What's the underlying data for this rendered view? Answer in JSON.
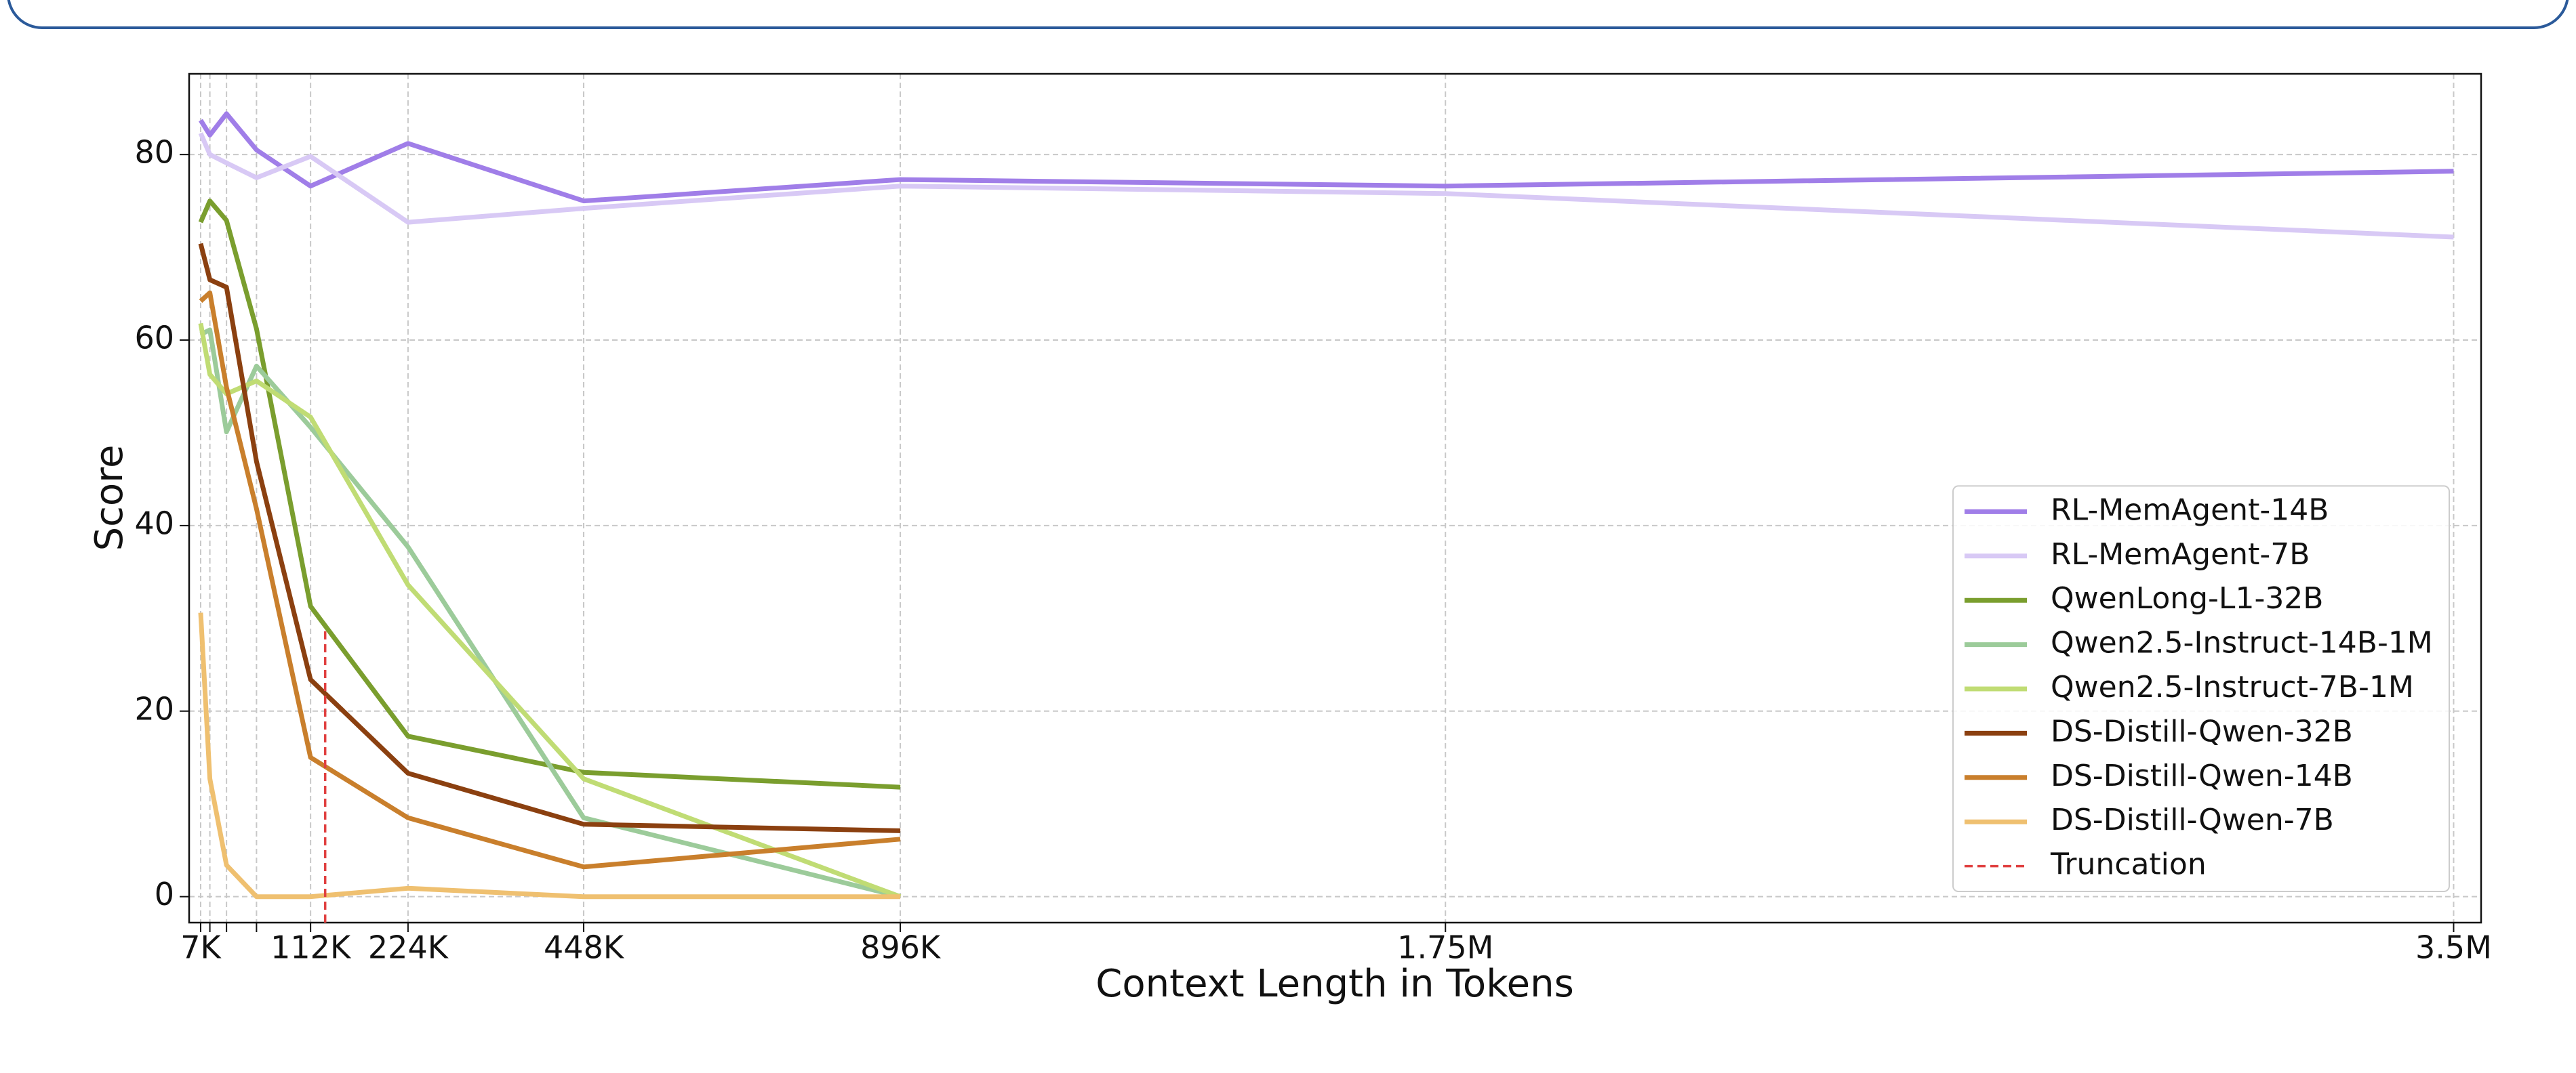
{
  "chart_data": {
    "type": "line",
    "xlabel": "Context Length in Tokens",
    "ylabel": "Score",
    "x": [
      7000,
      14000,
      28000,
      56000,
      112000,
      224000,
      448000,
      896000,
      1750000,
      3500000
    ],
    "xscale": "power",
    "xexponent": 0.85,
    "xlim": [
      0,
      3550000
    ],
    "xticks": [
      {
        "value": 7000,
        "label": "7K"
      },
      {
        "value": 112000,
        "label": "112K"
      },
      {
        "value": 224000,
        "label": "224K"
      },
      {
        "value": 448000,
        "label": "448K"
      },
      {
        "value": 896000,
        "label": "896K"
      },
      {
        "value": 1750000,
        "label": "1.75M"
      },
      {
        "value": 3500000,
        "label": "3.5M"
      }
    ],
    "xminorticks": [
      14000,
      28000,
      56000
    ],
    "ylim": [
      -2.8,
      88.7
    ],
    "yticks": [
      0,
      20,
      40,
      60,
      80
    ],
    "grid": true,
    "legend": "lower right",
    "series": [
      {
        "name": "RL-MemAgent-14B",
        "color": "#a07ee8",
        "values": [
          83.7,
          82.1,
          84.4,
          80.5,
          76.6,
          81.2,
          75.0,
          77.3,
          76.6,
          78.2
        ]
      },
      {
        "name": "RL-MemAgent-7B",
        "color": "#d8c9f5",
        "values": [
          82.3,
          80.0,
          79.1,
          77.5,
          79.8,
          72.7,
          74.2,
          76.6,
          75.8,
          71.1
        ]
      },
      {
        "name": "QwenLong-L1-32B",
        "color": "#7a9e2e",
        "values": [
          72.7,
          75.0,
          72.9,
          61.2,
          31.3,
          17.3,
          13.4,
          11.8,
          null,
          null
        ]
      },
      {
        "name": "Qwen2.5-Instruct-14B-1M",
        "color": "#9ccb9a",
        "values": [
          60.6,
          61.1,
          50.1,
          57.2,
          50.6,
          37.7,
          8.5,
          0,
          null,
          null
        ]
      },
      {
        "name": "Qwen2.5-Instruct-7B-1M",
        "color": "#c0dc74",
        "values": [
          61.8,
          56.3,
          54.2,
          55.6,
          51.7,
          33.6,
          12.7,
          0,
          null,
          null
        ]
      },
      {
        "name": "DS-Distill-Qwen-32B",
        "color": "#8b4010",
        "values": [
          70.4,
          66.5,
          65.7,
          46.9,
          23.4,
          13.3,
          7.8,
          7.1,
          null,
          null
        ]
      },
      {
        "name": "DS-Distill-Qwen-14B",
        "color": "#c97f2c",
        "values": [
          64.2,
          65.1,
          54.9,
          41.8,
          15.0,
          8.5,
          3.2,
          6.2,
          null,
          null
        ]
      },
      {
        "name": "DS-Distill-Qwen-7B",
        "color": "#efc070",
        "values": [
          30.6,
          12.7,
          3.4,
          0,
          0,
          0.9,
          0,
          0,
          null,
          null
        ]
      },
      {
        "name": "Truncation",
        "color": "#e04040",
        "dashed": true,
        "x": [
          128000,
          128000
        ],
        "values": [
          -2.8,
          29
        ]
      }
    ]
  }
}
